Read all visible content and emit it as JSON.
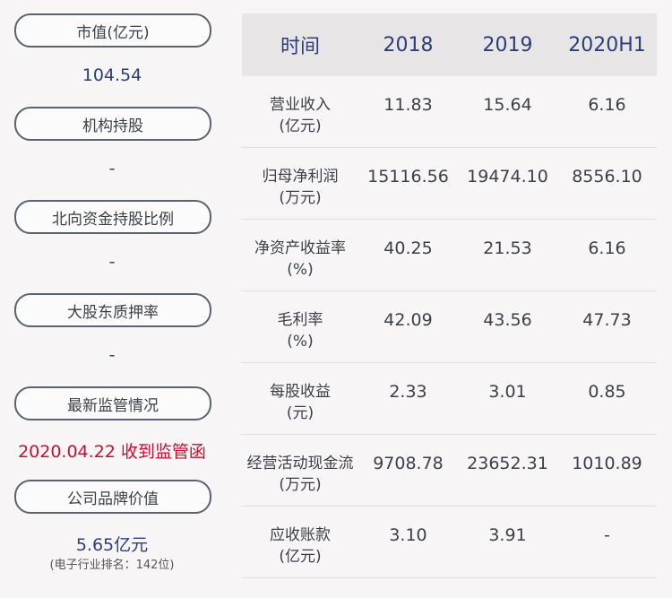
{
  "left": {
    "market_cap": {
      "label": "市值(亿元)",
      "value": "104.54"
    },
    "institution": {
      "label": "机构持股",
      "value": "-"
    },
    "north_capital": {
      "label": "北向资金持股比例",
      "value": "-"
    },
    "pledge": {
      "label": "大股东质押率",
      "value": "-"
    },
    "regulation": {
      "label": "最新监管情况",
      "value": "2020.04.22 收到监管函"
    },
    "brand": {
      "label": "公司品牌价值",
      "value": "5.65亿元",
      "sub": "(电子行业排名：142位)"
    }
  },
  "table": {
    "headers": [
      "时间",
      "2018",
      "2019",
      "2020H1"
    ],
    "rows": [
      {
        "l1": "营业收入",
        "l2": "(亿元)",
        "v": [
          "11.83",
          "15.64",
          "6.16"
        ]
      },
      {
        "l1": "归母净利润",
        "l2": "(万元)",
        "v": [
          "15116.56",
          "19474.10",
          "8556.10"
        ]
      },
      {
        "l1": "净资产收益率",
        "l2": "(%)",
        "v": [
          "40.25",
          "21.53",
          "6.16"
        ]
      },
      {
        "l1": "毛利率",
        "l2": "(%)",
        "v": [
          "42.09",
          "43.56",
          "47.73"
        ]
      },
      {
        "l1": "每股收益",
        "l2": "(元)",
        "v": [
          "2.33",
          "3.01",
          "0.85"
        ]
      },
      {
        "l1": "经营活动现金流",
        "l2": "(万元)",
        "v": [
          "9708.78",
          "23652.31",
          "1010.89"
        ]
      },
      {
        "l1": "应收账款",
        "l2": "(亿元)",
        "v": [
          "3.10",
          "3.91",
          "-"
        ]
      }
    ]
  },
  "colors": {
    "accent": "#2c3e7a",
    "alert": "#c8102e",
    "header_bg": "#e8e5e7",
    "background": "#f8f5f6"
  }
}
